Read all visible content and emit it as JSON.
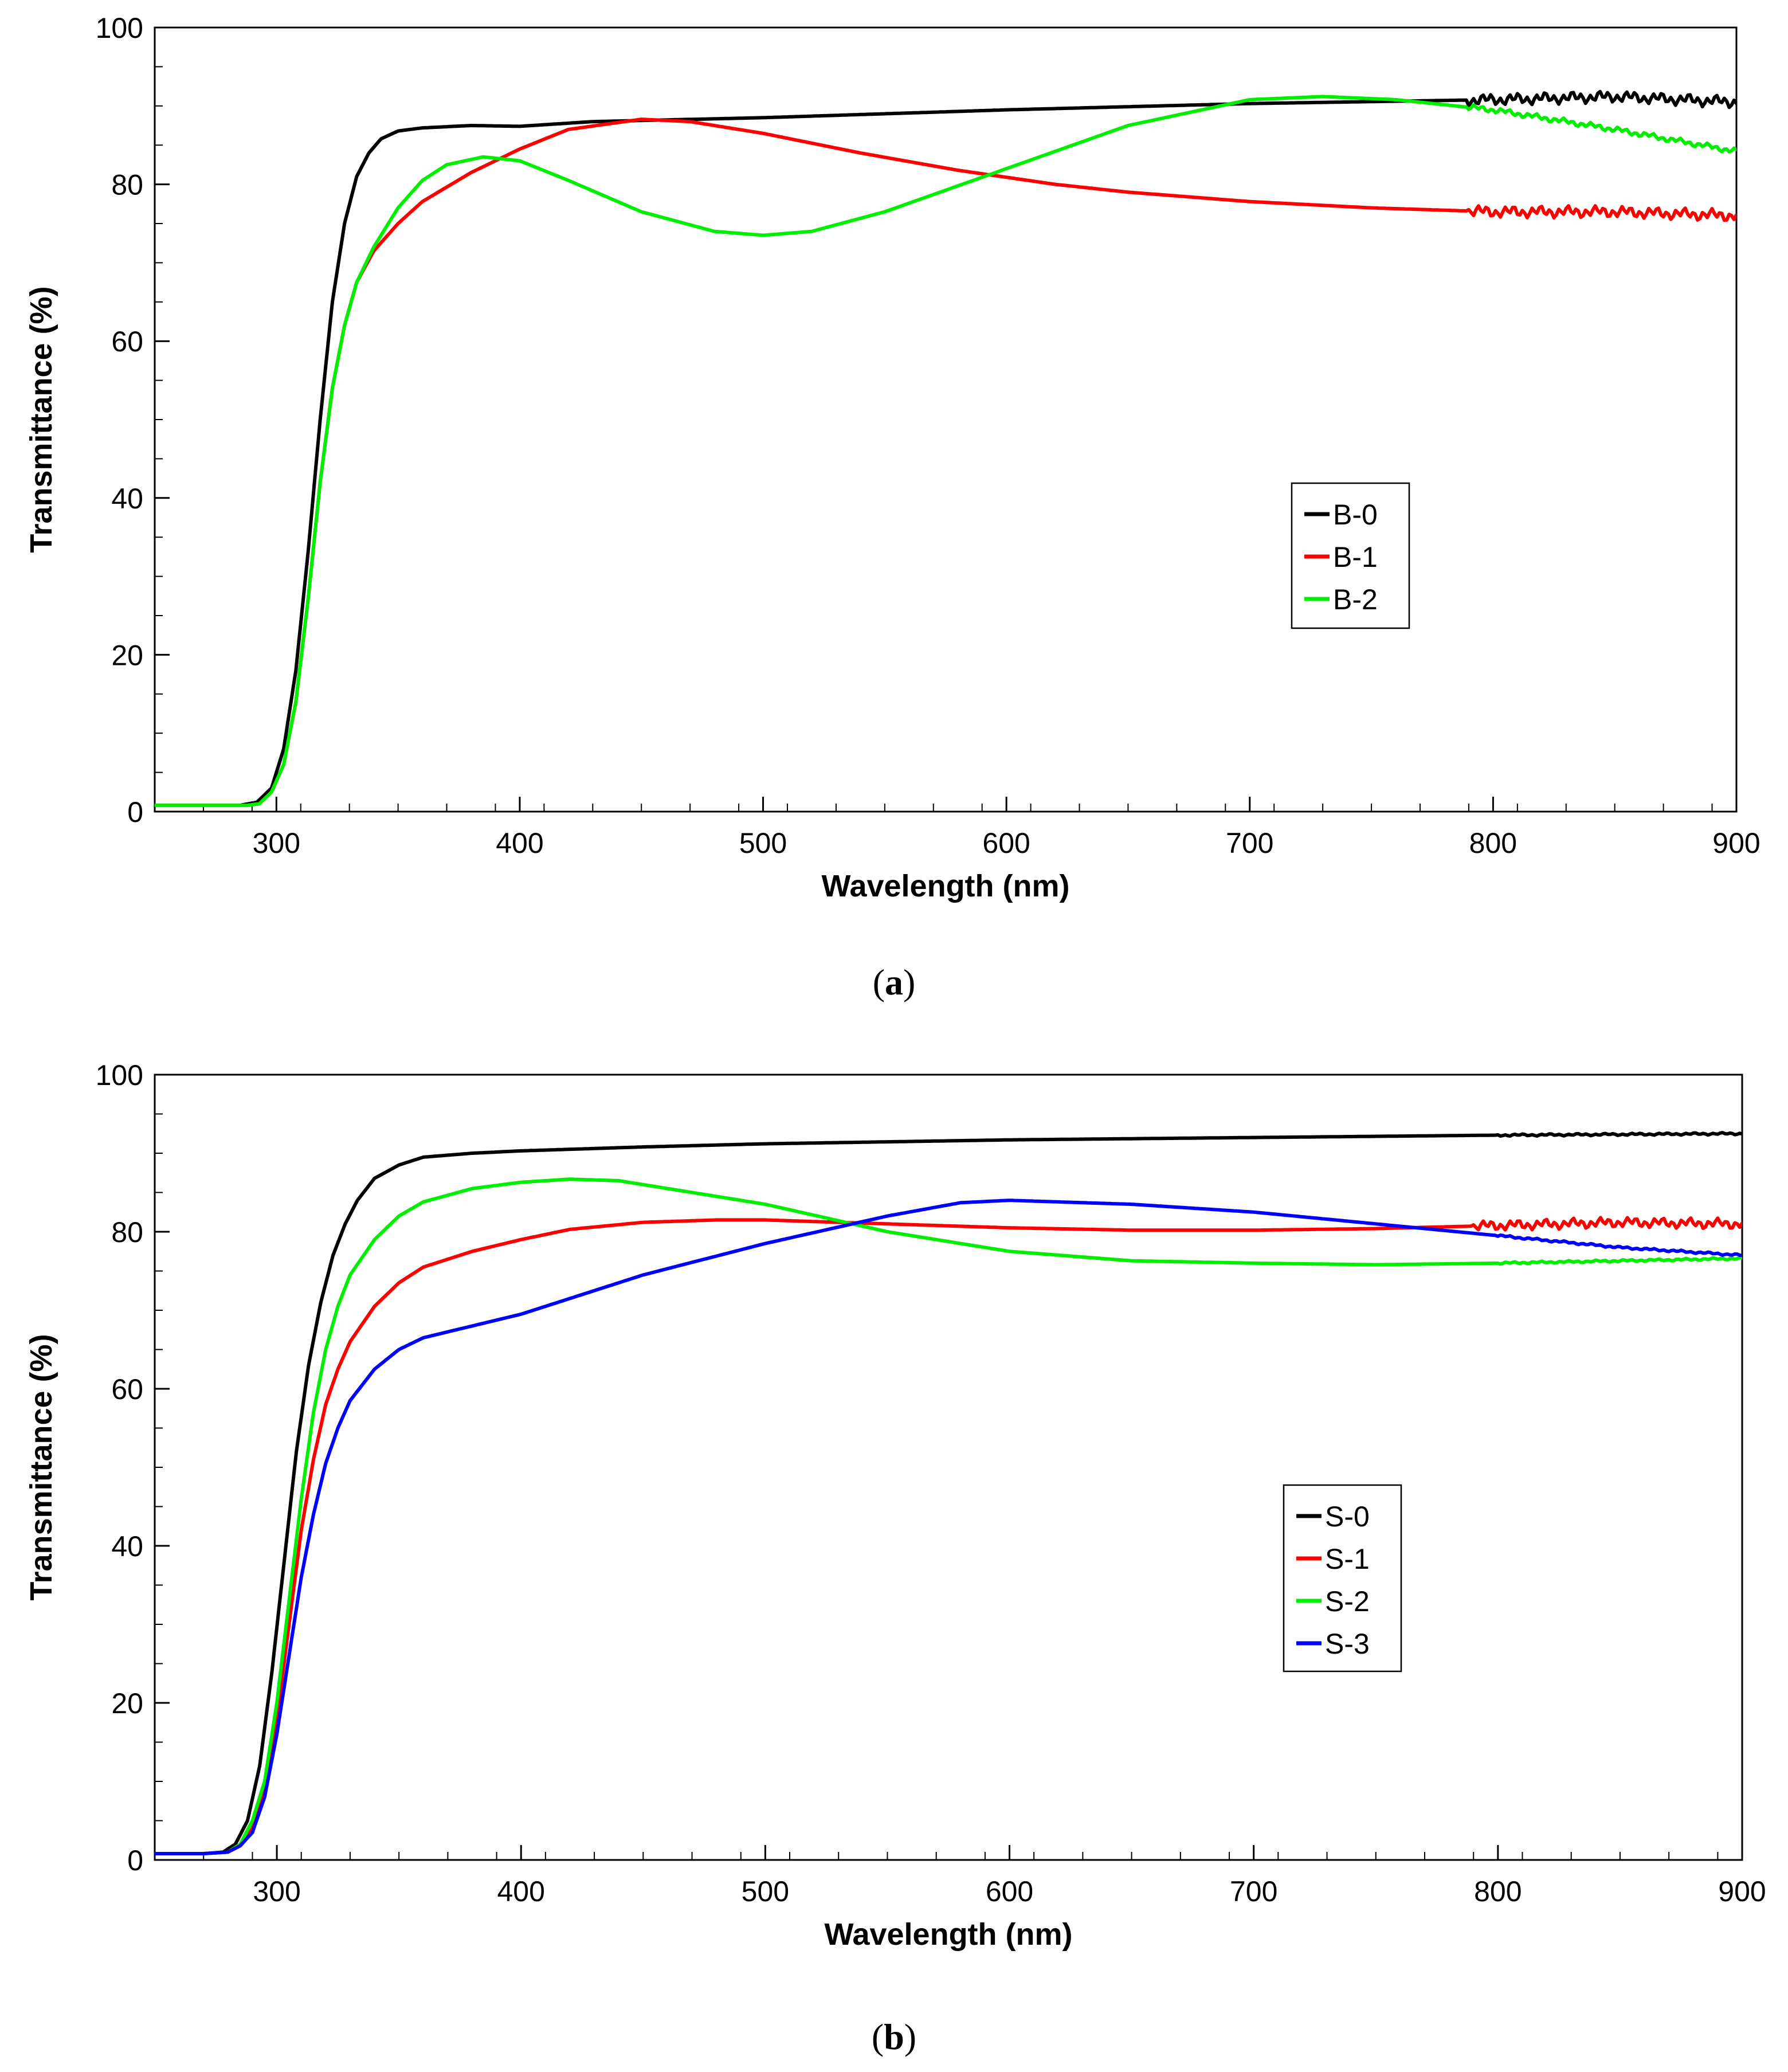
{
  "chart_data": [
    {
      "id": "a",
      "type": "line",
      "caption": "a",
      "xlabel": "Wavelength (nm)",
      "ylabel": "Transmittance (%)",
      "xlim": [
        250,
        900
      ],
      "ylim": [
        0,
        100
      ],
      "xticks": [
        300,
        400,
        500,
        600,
        700,
        800,
        900
      ],
      "yticks": [
        0,
        20,
        40,
        60,
        80,
        100
      ],
      "x_minor_step": 20,
      "y_minor_step": 5,
      "legend": {
        "placement": "center-right"
      },
      "series": [
        {
          "name": "B-0",
          "color": "#000000",
          "noise": {
            "start": 790,
            "amplitude": 0.8
          },
          "points": [
            [
              250,
              0.8
            ],
            [
              270,
              0.8
            ],
            [
              285,
              0.8
            ],
            [
              292,
              1.2
            ],
            [
              298,
              3
            ],
            [
              303,
              8
            ],
            [
              308,
              18
            ],
            [
              313,
              33
            ],
            [
              318,
              50
            ],
            [
              323,
              65
            ],
            [
              328,
              75
            ],
            [
              333,
              81
            ],
            [
              338,
              84
            ],
            [
              343,
              85.8
            ],
            [
              350,
              86.8
            ],
            [
              360,
              87.2
            ],
            [
              380,
              87.5
            ],
            [
              400,
              87.4
            ],
            [
              430,
              88
            ],
            [
              500,
              88.5
            ],
            [
              600,
              89.5
            ],
            [
              700,
              90.3
            ],
            [
              800,
              90.8
            ],
            [
              850,
              91.2
            ],
            [
              900,
              90.5
            ]
          ]
        },
        {
          "name": "B-1",
          "color": "#ff0000",
          "noise": {
            "start": 790,
            "amplitude": 0.8
          },
          "points": [
            [
              250,
              0.8
            ],
            [
              270,
              0.8
            ],
            [
              288,
              0.8
            ],
            [
              293,
              1
            ],
            [
              298,
              2.5
            ],
            [
              303,
              6
            ],
            [
              308,
              14
            ],
            [
              313,
              27
            ],
            [
              318,
              42
            ],
            [
              323,
              54
            ],
            [
              328,
              62
            ],
            [
              333,
              67.5
            ],
            [
              340,
              71.5
            ],
            [
              350,
              75
            ],
            [
              360,
              77.8
            ],
            [
              380,
              81.5
            ],
            [
              400,
              84.5
            ],
            [
              420,
              87
            ],
            [
              450,
              88.3
            ],
            [
              470,
              88
            ],
            [
              500,
              86.5
            ],
            [
              540,
              84
            ],
            [
              580,
              81.8
            ],
            [
              620,
              80
            ],
            [
              650,
              79
            ],
            [
              700,
              77.8
            ],
            [
              750,
              77
            ],
            [
              800,
              76.5
            ],
            [
              850,
              76.5
            ],
            [
              900,
              76
            ]
          ]
        },
        {
          "name": "B-2",
          "color": "#00ee00",
          "noise": {
            "start": 790,
            "amplitude": 0.4
          },
          "points": [
            [
              250,
              0.8
            ],
            [
              270,
              0.8
            ],
            [
              288,
              0.8
            ],
            [
              293,
              1
            ],
            [
              298,
              2.5
            ],
            [
              303,
              6
            ],
            [
              308,
              14
            ],
            [
              313,
              27
            ],
            [
              318,
              42
            ],
            [
              323,
              54
            ],
            [
              328,
              62
            ],
            [
              333,
              67.5
            ],
            [
              340,
              72
            ],
            [
              350,
              77
            ],
            [
              360,
              80.5
            ],
            [
              370,
              82.5
            ],
            [
              385,
              83.5
            ],
            [
              400,
              83
            ],
            [
              420,
              80.5
            ],
            [
              450,
              76.5
            ],
            [
              480,
              74
            ],
            [
              500,
              73.5
            ],
            [
              520,
              74
            ],
            [
              550,
              76.5
            ],
            [
              600,
              82
            ],
            [
              650,
              87.5
            ],
            [
              700,
              90.8
            ],
            [
              730,
              91.2
            ],
            [
              760,
              90.8
            ],
            [
              800,
              89.5
            ],
            [
              850,
              87
            ],
            [
              900,
              84.2
            ]
          ]
        }
      ]
    },
    {
      "id": "b",
      "type": "line",
      "caption": "b",
      "xlabel": "Wavelength (nm)",
      "ylabel": "Transmittance (%)",
      "xlim": [
        250,
        900
      ],
      "ylim": [
        0,
        100
      ],
      "xticks": [
        300,
        400,
        500,
        600,
        700,
        800,
        900
      ],
      "yticks": [
        0,
        20,
        40,
        60,
        80,
        100
      ],
      "x_minor_step": 20,
      "y_minor_step": 5,
      "legend": {
        "placement": "center-right"
      },
      "series": [
        {
          "name": "S-0",
          "color": "#000000",
          "noise": {
            "start": 800,
            "amplitude": 0.15
          },
          "points": [
            [
              250,
              0.8
            ],
            [
              270,
              0.8
            ],
            [
              278,
              1
            ],
            [
              283,
              2
            ],
            [
              288,
              5
            ],
            [
              293,
              12
            ],
            [
              298,
              24
            ],
            [
              303,
              38
            ],
            [
              308,
              52
            ],
            [
              313,
              63
            ],
            [
              318,
              71
            ],
            [
              323,
              77
            ],
            [
              328,
              81
            ],
            [
              333,
              84
            ],
            [
              340,
              86.8
            ],
            [
              350,
              88.5
            ],
            [
              360,
              89.5
            ],
            [
              380,
              90
            ],
            [
              400,
              90.3
            ],
            [
              450,
              90.8
            ],
            [
              500,
              91.2
            ],
            [
              600,
              91.7
            ],
            [
              700,
              92
            ],
            [
              800,
              92.3
            ],
            [
              900,
              92.5
            ]
          ]
        },
        {
          "name": "S-1",
          "color": "#ff0000",
          "noise": {
            "start": 790,
            "amplitude": 0.7
          },
          "points": [
            [
              250,
              0.8
            ],
            [
              270,
              0.8
            ],
            [
              280,
              1
            ],
            [
              285,
              2
            ],
            [
              290,
              4
            ],
            [
              295,
              9
            ],
            [
              300,
              18
            ],
            [
              305,
              30
            ],
            [
              310,
              42
            ],
            [
              315,
              51
            ],
            [
              320,
              58
            ],
            [
              325,
              62.5
            ],
            [
              330,
              66
            ],
            [
              340,
              70.5
            ],
            [
              350,
              73.5
            ],
            [
              360,
              75.5
            ],
            [
              380,
              77.5
            ],
            [
              400,
              79
            ],
            [
              420,
              80.3
            ],
            [
              450,
              81.2
            ],
            [
              480,
              81.5
            ],
            [
              500,
              81.5
            ],
            [
              550,
              81
            ],
            [
              600,
              80.5
            ],
            [
              650,
              80.2
            ],
            [
              700,
              80.2
            ],
            [
              750,
              80.4
            ],
            [
              800,
              80.8
            ],
            [
              850,
              81.2
            ],
            [
              900,
              81
            ]
          ]
        },
        {
          "name": "S-2",
          "color": "#00ee00",
          "noise": {
            "start": 800,
            "amplitude": 0.15
          },
          "points": [
            [
              250,
              0.8
            ],
            [
              270,
              0.8
            ],
            [
              280,
              1
            ],
            [
              285,
              2
            ],
            [
              290,
              5
            ],
            [
              295,
              10
            ],
            [
              300,
              20
            ],
            [
              305,
              33
            ],
            [
              310,
              46
            ],
            [
              315,
              57
            ],
            [
              320,
              65
            ],
            [
              325,
              70.5
            ],
            [
              330,
              74.5
            ],
            [
              340,
              79
            ],
            [
              350,
              82
            ],
            [
              360,
              83.8
            ],
            [
              380,
              85.5
            ],
            [
              400,
              86.3
            ],
            [
              420,
              86.7
            ],
            [
              440,
              86.5
            ],
            [
              460,
              85.5
            ],
            [
              500,
              83.5
            ],
            [
              550,
              80
            ],
            [
              600,
              77.5
            ],
            [
              650,
              76.3
            ],
            [
              700,
              76
            ],
            [
              750,
              75.8
            ],
            [
              800,
              76
            ],
            [
              850,
              76.3
            ],
            [
              900,
              76.6
            ]
          ]
        },
        {
          "name": "S-3",
          "color": "#0000ff",
          "noise": {
            "start": 800,
            "amplitude": 0.15
          },
          "points": [
            [
              250,
              0.8
            ],
            [
              270,
              0.8
            ],
            [
              280,
              1
            ],
            [
              285,
              1.8
            ],
            [
              290,
              3.5
            ],
            [
              295,
              8
            ],
            [
              300,
              16
            ],
            [
              305,
              26
            ],
            [
              310,
              36
            ],
            [
              315,
              44
            ],
            [
              320,
              50.5
            ],
            [
              325,
              55
            ],
            [
              330,
              58.5
            ],
            [
              340,
              62.5
            ],
            [
              350,
              65
            ],
            [
              360,
              66.5
            ],
            [
              380,
              68
            ],
            [
              400,
              69.5
            ],
            [
              420,
              71.5
            ],
            [
              450,
              74.5
            ],
            [
              500,
              78.5
            ],
            [
              550,
              82
            ],
            [
              580,
              83.7
            ],
            [
              600,
              84
            ],
            [
              650,
              83.5
            ],
            [
              700,
              82.5
            ],
            [
              750,
              81
            ],
            [
              800,
              79.5
            ],
            [
              850,
              78
            ],
            [
              900,
              77
            ]
          ]
        }
      ]
    }
  ]
}
